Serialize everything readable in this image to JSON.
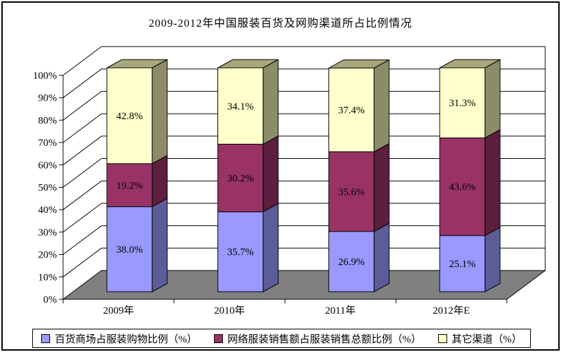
{
  "chart_data": {
    "type": "bar",
    "stacked": true,
    "title": "2009-2012年中国服装百货及网购渠道所占比例情况",
    "categories": [
      "2009年",
      "2010年",
      "2011年",
      "2012年E"
    ],
    "series": [
      {
        "name": "百货商场占服装购物比例（%）",
        "color": "#9999FF",
        "side_color": "#5C5C99",
        "values": [
          38.0,
          35.7,
          26.9,
          25.1
        ]
      },
      {
        "name": "网络服装销售额占服装销售总额比例（%）",
        "color": "#993366",
        "side_color": "#5C1F3D",
        "values": [
          19.2,
          30.2,
          35.6,
          43.6
        ]
      },
      {
        "name": "其它渠道（%）",
        "color": "#FFFFCC",
        "side_color": "#8C8C69",
        "values": [
          42.8,
          34.1,
          37.4,
          31.3
        ]
      }
    ],
    "ylim": [
      0,
      100
    ],
    "y_tick_step": 10,
    "y_tick_suffix": "%",
    "grid": true,
    "legend_position": "bottom",
    "wall_color": "#FFFFFF",
    "floor_color": "#808080",
    "top_face_color": "#A8A87C",
    "label_format": "one_decimal_percent"
  }
}
